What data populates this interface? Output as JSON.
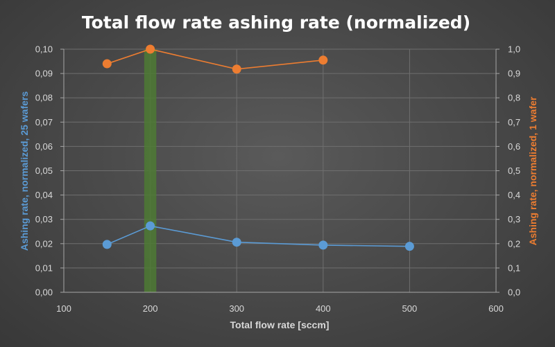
{
  "chart_data": {
    "type": "line",
    "title": "Total flow rate ashing rate (normalized)",
    "xlabel": "Total flow rate [sccm]",
    "ylabel_left": "Ashing rate, normalized, 25 wafers",
    "ylabel_right": "Ashing rate, normalized, 1 wafer",
    "xlim": [
      100,
      600
    ],
    "xticks": [
      "100",
      "200",
      "300",
      "400",
      "500",
      "600"
    ],
    "ylim_left": [
      0,
      0.1
    ],
    "yticks_left": [
      "0,00",
      "0,01",
      "0,02",
      "0,03",
      "0,04",
      "0,05",
      "0,06",
      "0,07",
      "0,08",
      "0,09",
      "0,10"
    ],
    "ylim_right": [
      0,
      1.0
    ],
    "yticks_right": [
      "0,0",
      "0,1",
      "0,2",
      "0,3",
      "0,4",
      "0,5",
      "0,6",
      "0,7",
      "0,8",
      "0,9",
      "1,0"
    ],
    "grid": true,
    "highlight_band": {
      "x_from": 193,
      "x_to": 207,
      "color": "#4e7a34"
    },
    "series": [
      {
        "axis": "left",
        "color": "#5b9bd5",
        "x": [
          150,
          200,
          300,
          400,
          500
        ],
        "y": [
          0.0197,
          0.0273,
          0.0206,
          0.0194,
          0.0189
        ]
      },
      {
        "axis": "right",
        "color": "#ed7d31",
        "x": [
          150,
          200,
          300,
          400
        ],
        "y": [
          0.94,
          1.0,
          0.918,
          0.955
        ]
      }
    ]
  }
}
